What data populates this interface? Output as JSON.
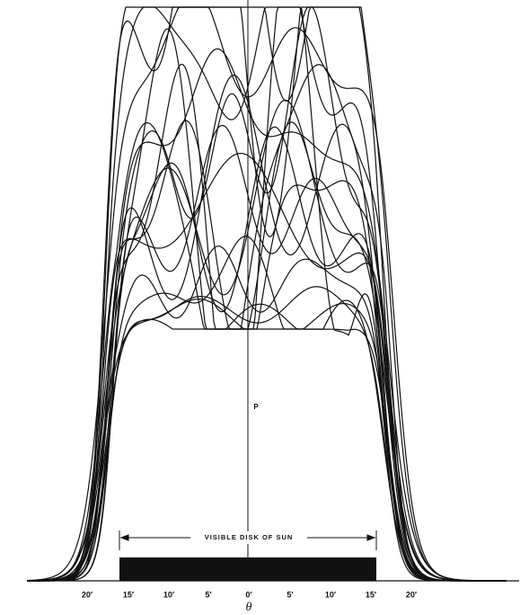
{
  "figure": {
    "x_tick_labels": [
      "20′",
      "15′",
      "10′",
      "5′",
      "0′",
      "5′",
      "10′",
      "15′",
      "20′"
    ],
    "x_label": "θ",
    "marker": "P",
    "disk_label": "VISIBLE DISK OF SUN"
  }
}
